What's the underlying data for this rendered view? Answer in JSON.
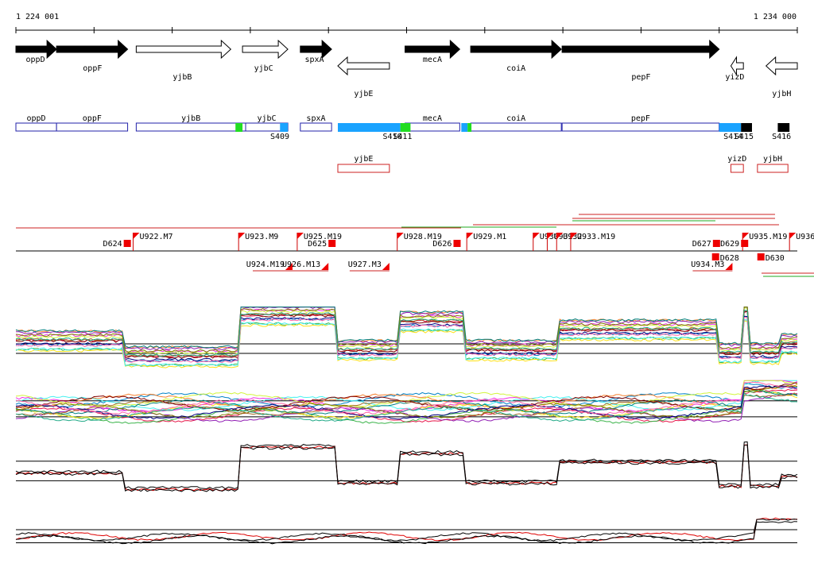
{
  "coords": {
    "start": "1 224 001",
    "end": "1 234 000"
  },
  "genes": [
    {
      "name": "oppD",
      "strand": "+",
      "fill": "#000000",
      "start": 1224000,
      "end": 1224520,
      "label_pos": 1224250,
      "label_row": 0
    },
    {
      "name": "oppF",
      "strand": "+",
      "fill": "#000000",
      "start": 1224520,
      "end": 1225430,
      "label_pos": 1224980,
      "label_row": 1
    },
    {
      "name": "yjbB",
      "strand": "+",
      "fill": "#ffffff",
      "start": 1225540,
      "end": 1226750,
      "label_pos": 1226130,
      "label_row": 2
    },
    {
      "name": "yjbC",
      "strand": "+",
      "fill": "#ffffff",
      "start": 1226900,
      "end": 1227480,
      "label_pos": 1227170,
      "label_row": 1
    },
    {
      "name": "spxA",
      "strand": "+",
      "fill": "#000000",
      "start": 1227640,
      "end": 1228040,
      "label_pos": 1227820,
      "label_row": 0
    },
    {
      "name": "yjbE",
      "strand": "-",
      "fill": "#ffffff",
      "start": 1228120,
      "end": 1228780,
      "label_pos": 1228450,
      "label_row": 3
    },
    {
      "name": "mecA",
      "strand": "+",
      "fill": "#000000",
      "start": 1228980,
      "end": 1229680,
      "label_pos": 1229330,
      "label_row": 0
    },
    {
      "name": "coiA",
      "strand": "+",
      "fill": "#000000",
      "start": 1229820,
      "end": 1230980,
      "label_pos": 1230400,
      "label_row": 1
    },
    {
      "name": "pepF",
      "strand": "+",
      "fill": "#000000",
      "start": 1230990,
      "end": 1233000,
      "label_pos": 1232000,
      "label_row": 2
    },
    {
      "name": "yizD",
      "strand": "-",
      "fill": "#ffffff",
      "start": 1233150,
      "end": 1233310,
      "label_pos": 1233200,
      "label_row": 2
    },
    {
      "name": "yjbH",
      "strand": "-",
      "fill": "#ffffff",
      "start": 1233600,
      "end": 1234000,
      "label_pos": 1233800,
      "label_row": 3
    }
  ],
  "fwd_units": [
    {
      "name": "oppD",
      "start": 1224000,
      "end": 1224520
    },
    {
      "name": "oppF",
      "start": 1224520,
      "end": 1225430
    },
    {
      "name": "yjbB",
      "start": 1225540,
      "end": 1226940
    },
    {
      "name": "yjbC",
      "start": 1226940,
      "end": 1227480
    },
    {
      "name": "spxA",
      "start": 1227640,
      "end": 1228040
    },
    {
      "name": "mecA",
      "start": 1228980,
      "end": 1229680
    },
    {
      "name": "coiA",
      "start": 1229820,
      "end": 1230980
    },
    {
      "name": "pepF",
      "start": 1230990,
      "end": 1233000
    }
  ],
  "rev_units": [
    {
      "name": "yjbE",
      "start": 1228120,
      "end": 1228780
    },
    {
      "name": "yizD",
      "start": 1233150,
      "end": 1233310
    },
    {
      "name": "yjbH",
      "start": 1233490,
      "end": 1233880
    }
  ],
  "segments": [
    {
      "label": "",
      "start": 1226810,
      "end": 1226900,
      "color": "#22dd22"
    },
    {
      "label": "S409",
      "start": 1227380,
      "end": 1227480,
      "color": "#1aa3ff"
    },
    {
      "label": "S410",
      "start": 1228120,
      "end": 1228920,
      "color": "#1aa3ff"
    },
    {
      "label": "S411",
      "start": 1228920,
      "end": 1229050,
      "color": "#22dd22"
    },
    {
      "label": "",
      "start": 1229700,
      "end": 1229780,
      "color": "#1aa3ff"
    },
    {
      "label": "",
      "start": 1229780,
      "end": 1229830,
      "color": "#22dd22"
    },
    {
      "label": "S414",
      "start": 1233000,
      "end": 1233280,
      "color": "#1aa3ff"
    },
    {
      "label": "S415",
      "start": 1233280,
      "end": 1233420,
      "color": "#000000"
    },
    {
      "label": "S416",
      "start": 1233750,
      "end": 1233900,
      "color": "#000000"
    }
  ],
  "upshifts": [
    {
      "label": "U922.M7",
      "pos": 1225500
    },
    {
      "label": "U923.M9",
      "pos": 1226850
    },
    {
      "label": "U925.M19",
      "pos": 1227600
    },
    {
      "label": "U928.M19",
      "pos": 1228880
    },
    {
      "label": "U929.M1",
      "pos": 1229770
    },
    {
      "label": "U930",
      "pos": 1230620
    },
    {
      "label": "U931",
      "pos": 1230800
    },
    {
      "label": "U932",
      "pos": 1230920
    },
    {
      "label": "U933.M19",
      "pos": 1231100
    },
    {
      "label": "U935.M19",
      "pos": 1233300
    },
    {
      "label": "U936",
      "pos": 1233900
    }
  ],
  "downshifts": [
    {
      "label": "D624",
      "pos": 1225380
    },
    {
      "label": "D625",
      "pos": 1228000
    },
    {
      "label": "D626",
      "pos": 1229600
    },
    {
      "label": "D627",
      "pos": 1232920
    },
    {
      "label": "D629",
      "pos": 1233280
    }
  ],
  "upshifts_rev": [
    {
      "label": "U924.M19",
      "pos": 1227540
    },
    {
      "label": "U926.M13",
      "pos": 1228000
    },
    {
      "label": "U927.M3",
      "pos": 1228780
    },
    {
      "label": "U934.M3",
      "pos": 1233170
    }
  ],
  "downshifts_rev": [
    {
      "label": "D628",
      "pos": 1233000
    },
    {
      "label": "D630",
      "pos": 1233580
    }
  ],
  "panels": [
    {
      "kind": "multi",
      "top": 385,
      "bottom": 465
    },
    {
      "kind": "multi",
      "top": 478,
      "bottom": 545
    },
    {
      "kind": "single",
      "top": 548,
      "bottom": 630
    },
    {
      "kind": "single",
      "top": 645,
      "bottom": 700
    }
  ]
}
